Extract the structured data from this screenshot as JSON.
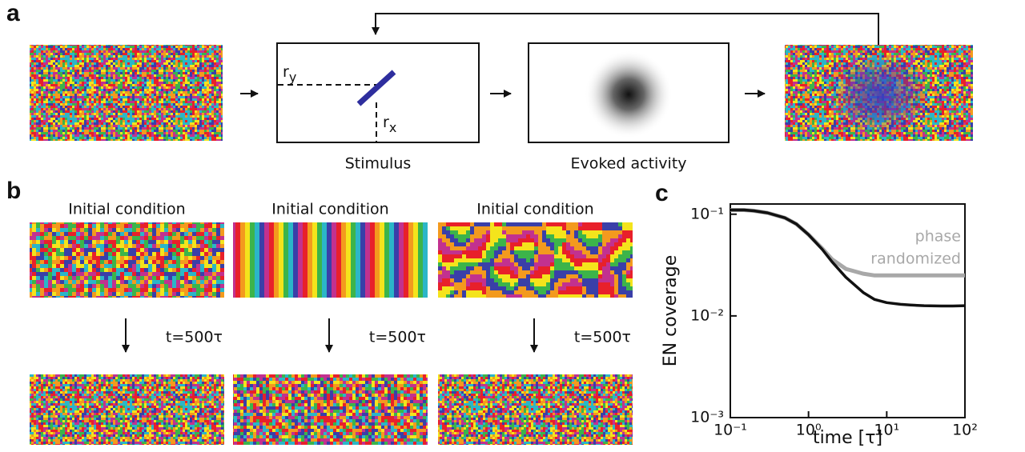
{
  "panel_labels": [
    "a",
    "b",
    "c"
  ],
  "panel_a": {
    "r_y": [
      "r",
      "y"
    ],
    "r_x": [
      "r",
      "x"
    ],
    "stimulus_label": "Stimulus",
    "evoked_label": "Evoked activity"
  },
  "panel_b": {
    "columns": [
      {
        "title": "Initial condition",
        "time": "t=500τ"
      },
      {
        "title": "Initial condition",
        "time": "t=500τ"
      },
      {
        "title": "Initial condition",
        "time": "t=500τ"
      }
    ]
  },
  "chart_data": {
    "type": "line",
    "x_label": "time [τ]",
    "y_label": "EN coverage",
    "log_x": true,
    "log_y": true,
    "xlim": [
      0.1,
      100
    ],
    "ylim": [
      0.001,
      0.126
    ],
    "xticks": [
      {
        "value": 0.1,
        "label": "10⁻¹"
      },
      {
        "value": 1,
        "label": "10⁰"
      },
      {
        "value": 10,
        "label": "10¹"
      },
      {
        "value": 100,
        "label": "10²"
      }
    ],
    "yticks": [
      {
        "value": 0.001,
        "label": "10⁻³"
      },
      {
        "value": 0.01,
        "label": "10⁻²"
      },
      {
        "value": 0.1,
        "label": "10⁻¹"
      }
    ],
    "annotation": [
      "phase",
      "randomized"
    ],
    "x": [
      0.1,
      0.15,
      0.2,
      0.3,
      0.5,
      0.7,
      1,
      1.5,
      2,
      3,
      5,
      7,
      10,
      15,
      20,
      30,
      50,
      70,
      100
    ],
    "series": [
      {
        "color": "#a8a8a8",
        "values": [
          0.11,
          0.11,
          0.108,
          0.103,
          0.092,
          0.08,
          0.063,
          0.046,
          0.036,
          0.029,
          0.026,
          0.025,
          0.025,
          0.025,
          0.025,
          0.025,
          0.025,
          0.025,
          0.025
        ]
      },
      {
        "color": "#111111",
        "values": [
          0.11,
          0.11,
          0.108,
          0.103,
          0.092,
          0.08,
          0.063,
          0.045,
          0.034,
          0.024,
          0.017,
          0.0145,
          0.0135,
          0.013,
          0.0128,
          0.0126,
          0.0125,
          0.0125,
          0.0126
        ]
      }
    ]
  }
}
